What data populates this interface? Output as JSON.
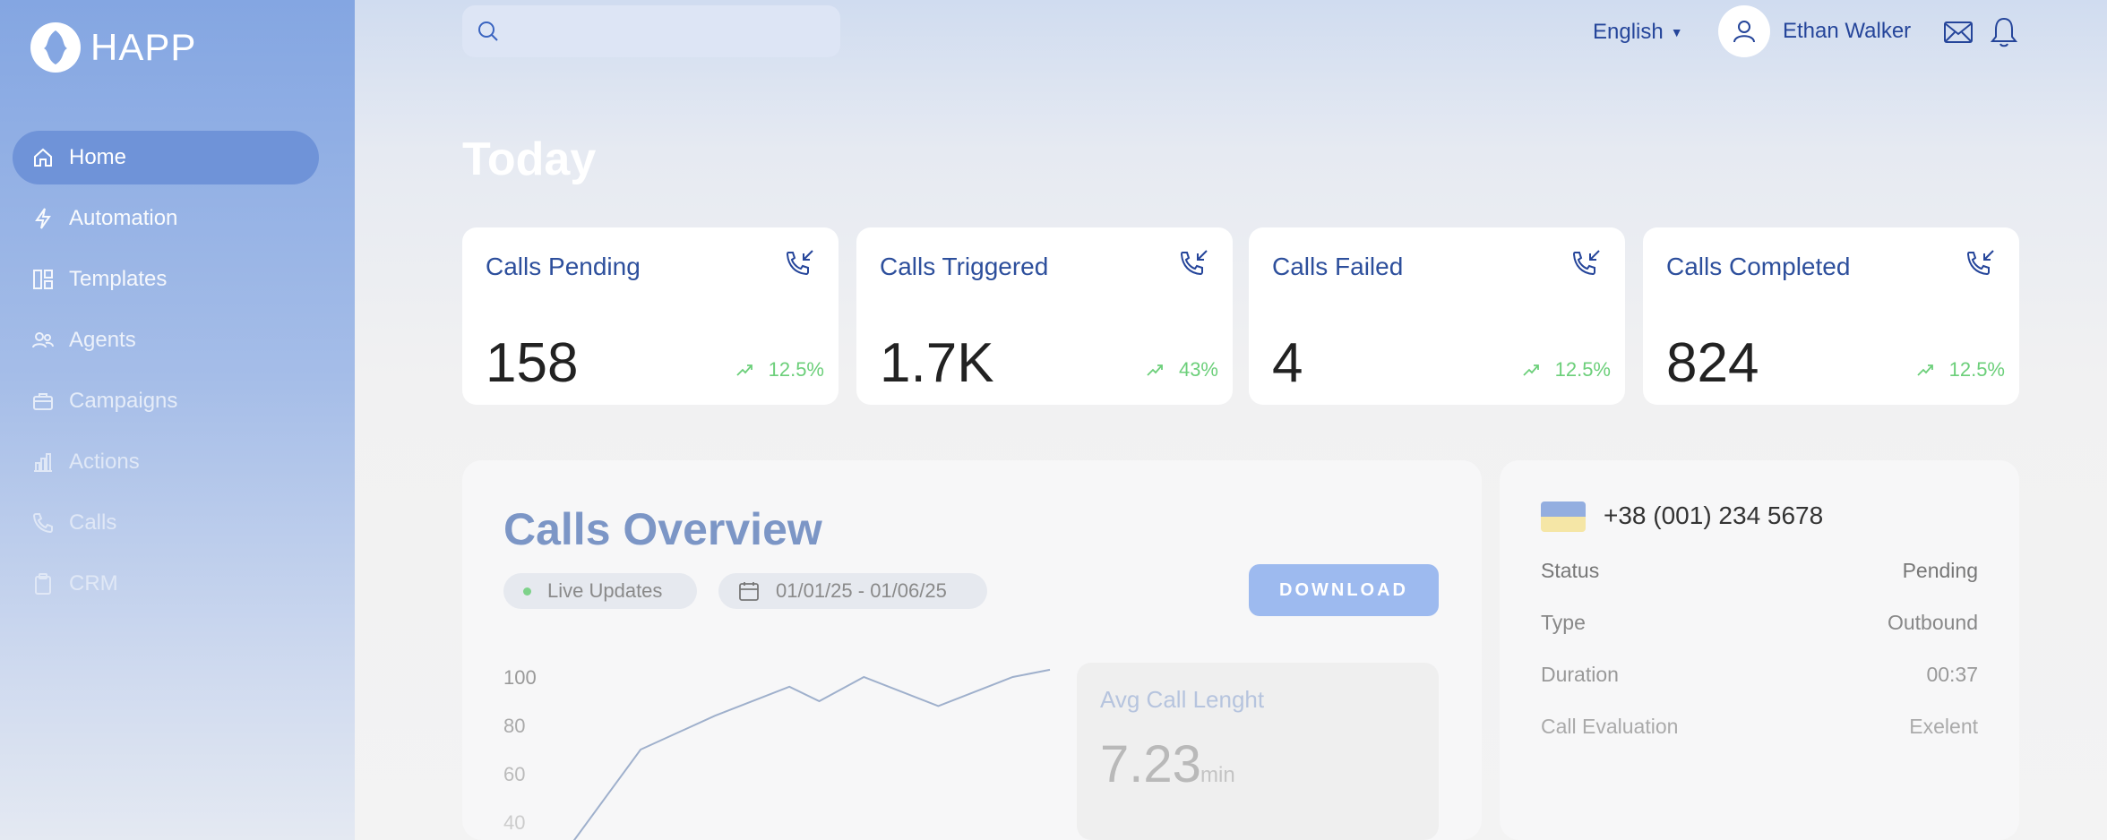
{
  "app": {
    "name": "HAPP"
  },
  "sidebar": {
    "items": [
      {
        "label": "Home",
        "icon": "home-icon",
        "active": true
      },
      {
        "label": "Automation",
        "icon": "bolt-icon"
      },
      {
        "label": "Templates",
        "icon": "layout-icon"
      },
      {
        "label": "Agents",
        "icon": "users-icon"
      },
      {
        "label": "Campaigns",
        "icon": "briefcase-icon"
      },
      {
        "label": "Actions",
        "icon": "chart-icon"
      },
      {
        "label": "Calls",
        "icon": "phone-icon"
      },
      {
        "label": "CRM",
        "icon": "clipboard-icon"
      }
    ]
  },
  "header": {
    "search_placeholder": "",
    "language": "English",
    "user_name": "Ethan Walker"
  },
  "page": {
    "title": "Today"
  },
  "stats": [
    {
      "label": "Calls Pending",
      "value": "158",
      "trend": "12.5%"
    },
    {
      "label": "Calls Triggered",
      "value": "1.7K",
      "trend": "43%"
    },
    {
      "label": "Calls Failed",
      "value": "4",
      "trend": "12.5%"
    },
    {
      "label": "Calls Completed",
      "value": "824",
      "trend": "12.5%"
    }
  ],
  "overview": {
    "title": "Calls Overview",
    "live_label": "Live Updates",
    "date_range": "01/01/25 - 01/06/25",
    "download_label": "DOWNLOAD",
    "avg_label": "Avg Call Lenght",
    "avg_value": "7.23",
    "avg_unit": "min"
  },
  "chart_data": {
    "type": "line",
    "y_ticks": [
      "100",
      "80",
      "60",
      "40"
    ],
    "ylim": [
      30,
      100
    ],
    "x": [
      0,
      1,
      2,
      3,
      3.4,
      4,
      5,
      6,
      6.5
    ],
    "values": [
      28,
      70,
      84,
      96,
      90,
      100,
      88,
      100,
      103
    ],
    "xlabel": "",
    "ylabel": "",
    "grid": false
  },
  "detail": {
    "phone": "+38 (001) 234 5678",
    "rows": [
      {
        "key": "Status",
        "value": "Pending"
      },
      {
        "key": "Type",
        "value": "Outbound"
      },
      {
        "key": "Duration",
        "value": "00:37"
      },
      {
        "key": "Call Evaluation",
        "value": "Exelent"
      }
    ]
  },
  "colors": {
    "accent": "#25459a",
    "sidebar_active": "#6f93d8",
    "positive": "#6ccf7a",
    "download": "#9dbaef"
  }
}
